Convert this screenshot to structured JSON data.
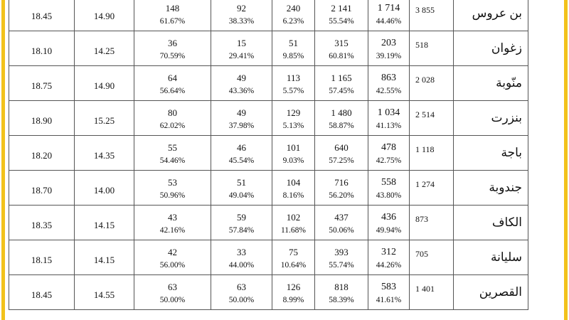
{
  "rows": [
    {
      "gov": "بن عروس",
      "total": "3 855",
      "a": "1 714",
      "a_pct": "44.46%",
      "b": "2 141",
      "b_pct": "55.54%",
      "c": "240",
      "c_pct": "6.23%",
      "d": "92",
      "d_pct": "38.33%",
      "e": "148",
      "e_pct": "61.67%",
      "min": "14.90",
      "max": "18.45"
    },
    {
      "gov": "زغوان",
      "total": "518",
      "a": "203",
      "a_pct": "39.19%",
      "b": "315",
      "b_pct": "60.81%",
      "c": "51",
      "c_pct": "9.85%",
      "d": "15",
      "d_pct": "29.41%",
      "e": "36",
      "e_pct": "70.59%",
      "min": "14.25",
      "max": "18.10"
    },
    {
      "gov": "منّوبة",
      "total": "2 028",
      "a": "863",
      "a_pct": "42.55%",
      "b": "1 165",
      "b_pct": "57.45%",
      "c": "113",
      "c_pct": "5.57%",
      "d": "49",
      "d_pct": "43.36%",
      "e": "64",
      "e_pct": "56.64%",
      "min": "14.90",
      "max": "18.75"
    },
    {
      "gov": "بنزرت",
      "total": "2 514",
      "a": "1 034",
      "a_pct": "41.13%",
      "b": "1 480",
      "b_pct": "58.87%",
      "c": "129",
      "c_pct": "5.13%",
      "d": "49",
      "d_pct": "37.98%",
      "e": "80",
      "e_pct": "62.02%",
      "min": "15.25",
      "max": "18.90"
    },
    {
      "gov": "باجة",
      "total": "1 118",
      "a": "478",
      "a_pct": "42.75%",
      "b": "640",
      "b_pct": "57.25%",
      "c": "101",
      "c_pct": "9.03%",
      "d": "46",
      "d_pct": "45.54%",
      "e": "55",
      "e_pct": "54.46%",
      "min": "14.35",
      "max": "18.20"
    },
    {
      "gov": "جندوبة",
      "total": "1 274",
      "a": "558",
      "a_pct": "43.80%",
      "b": "716",
      "b_pct": "56.20%",
      "c": "104",
      "c_pct": "8.16%",
      "d": "51",
      "d_pct": "49.04%",
      "e": "53",
      "e_pct": "50.96%",
      "min": "14.00",
      "max": "18.70"
    },
    {
      "gov": "الكاف",
      "total": "873",
      "a": "436",
      "a_pct": "49.94%",
      "b": "437",
      "b_pct": "50.06%",
      "c": "102",
      "c_pct": "11.68%",
      "d": "59",
      "d_pct": "57.84%",
      "e": "43",
      "e_pct": "42.16%",
      "min": "14.15",
      "max": "18.35"
    },
    {
      "gov": "سليانة",
      "total": "705",
      "a": "312",
      "a_pct": "44.26%",
      "b": "393",
      "b_pct": "55.74%",
      "c": "75",
      "c_pct": "10.64%",
      "d": "33",
      "d_pct": "44.00%",
      "e": "42",
      "e_pct": "56.00%",
      "min": "14.15",
      "max": "18.15"
    },
    {
      "gov": "القصرين",
      "total": "1 401",
      "a": "583",
      "a_pct": "41.61%",
      "b": "818",
      "b_pct": "58.39%",
      "c": "126",
      "c_pct": "8.99%",
      "d": "63",
      "d_pct": "50.00%",
      "e": "63",
      "e_pct": "50.00%",
      "min": "14.55",
      "max": "18.45"
    }
  ]
}
